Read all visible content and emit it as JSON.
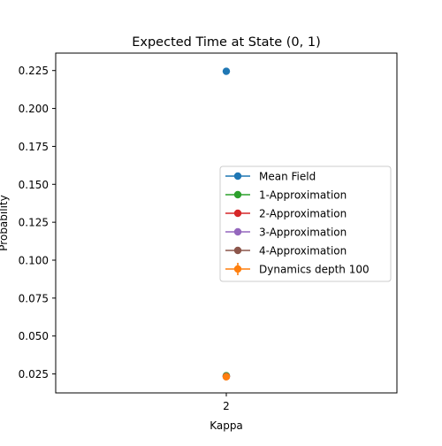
{
  "chart_data": {
    "type": "scatter",
    "title": "Expected Time at State (0, 1)",
    "xlabel": "Kappa",
    "ylabel": "Probability",
    "x": [
      2
    ],
    "x_tick_labels": [
      "2"
    ],
    "ylim": [
      0.0125,
      0.2365
    ],
    "y_ticks": [
      0.025,
      0.05,
      0.075,
      0.1,
      0.125,
      0.15,
      0.175,
      0.2,
      0.225
    ],
    "y_tick_labels": [
      "0.025",
      "0.050",
      "0.075",
      "0.100",
      "0.125",
      "0.150",
      "0.175",
      "0.200",
      "0.225"
    ],
    "grid": false,
    "legend_position": "center-right",
    "series": [
      {
        "name": "Mean Field",
        "color": "#1f77b4",
        "values": [
          0.2245
        ],
        "marker": "circle"
      },
      {
        "name": "1-Approximation",
        "color": "#2ca02c",
        "values": [
          0.0238
        ],
        "marker": "circle"
      },
      {
        "name": "2-Approximation",
        "color": "#d62728",
        "values": [
          0.0233
        ],
        "marker": "circle"
      },
      {
        "name": "3-Approximation",
        "color": "#9467bd",
        "values": [
          0.0233
        ],
        "marker": "circle"
      },
      {
        "name": "4-Approximation",
        "color": "#8c564b",
        "values": [
          0.0233
        ],
        "marker": "circle"
      },
      {
        "name": "Dynamics depth 100",
        "color": "#ff7f0e",
        "values": [
          0.0231
        ],
        "marker": "circle-errorbar"
      }
    ]
  }
}
